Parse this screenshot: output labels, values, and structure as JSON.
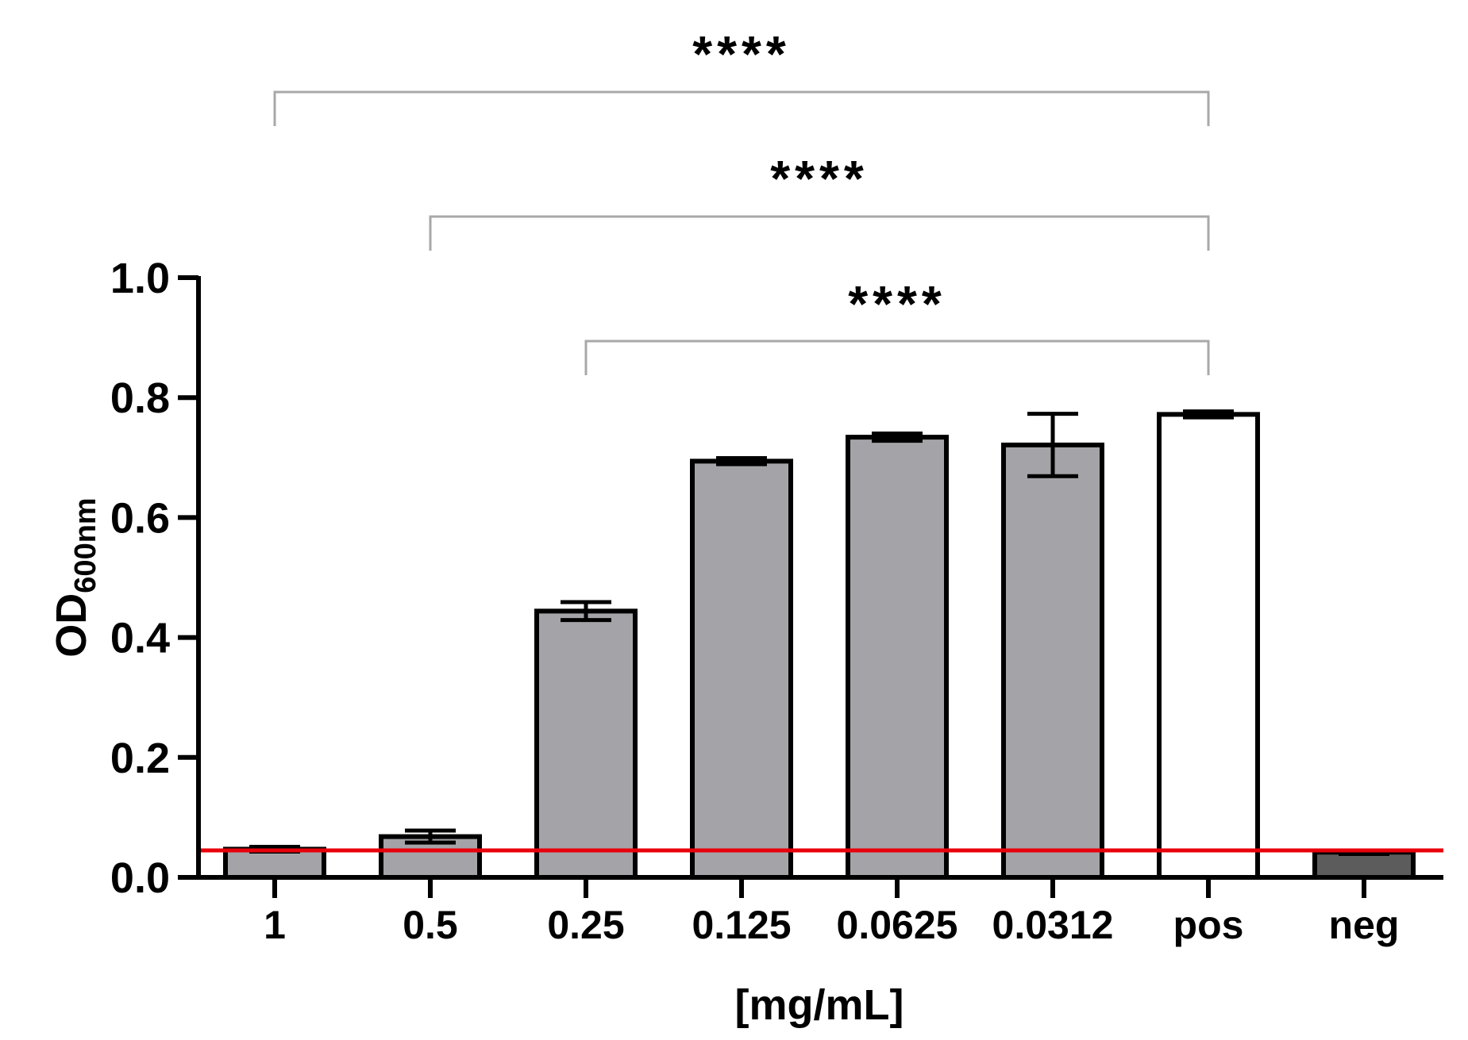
{
  "chart_data": {
    "type": "bar",
    "categories": [
      "1",
      "0.5",
      "0.25",
      "0.125",
      "0.0625",
      "0.0312",
      "pos",
      "neg"
    ],
    "values": [
      0.047,
      0.068,
      0.444,
      0.694,
      0.734,
      0.721,
      0.772,
      0.042
    ],
    "errors": [
      0.004,
      0.01,
      0.015,
      0.005,
      0.006,
      0.052,
      0.005,
      0.003
    ],
    "bar_colors": [
      "#a4a4a8",
      "#a4a4a8",
      "#a4a4a8",
      "#a4a4a8",
      "#a4a4a8",
      "#a4a4a8",
      "#ffffff",
      "#5c5c5c"
    ],
    "xlabel": "[mg/mL]",
    "ylabel": {
      "main": "OD",
      "sub": "600nm"
    },
    "ylim": [
      0,
      1.0
    ],
    "yticks": [
      "0.0",
      "0.2",
      "0.4",
      "0.6",
      "0.8",
      "1.0"
    ],
    "threshold": {
      "value": 0.045,
      "color": "#e8000b"
    },
    "comparisons": [
      {
        "from": "1",
        "to": "pos",
        "label": "****"
      },
      {
        "from": "0.5",
        "to": "pos",
        "label": "****"
      },
      {
        "from": "0.25",
        "to": "pos",
        "label": "****"
      }
    ],
    "grid": false,
    "legend": "none"
  }
}
